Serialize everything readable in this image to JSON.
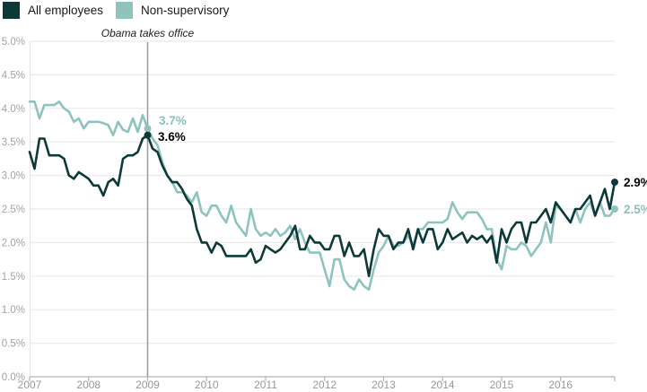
{
  "legend": {
    "items": [
      {
        "label": "All employees",
        "color": "#0d3a38"
      },
      {
        "label": "Non-supervisory",
        "color": "#8fc3be"
      }
    ]
  },
  "chart_data": {
    "type": "line",
    "title": "",
    "xlabel": "",
    "ylabel": "",
    "x_unit": "month",
    "x_range": [
      "2007-01",
      "2016-12"
    ],
    "x_tick_labels": [
      "2007",
      "2008",
      "2009",
      "2010",
      "2011",
      "2012",
      "2013",
      "2014",
      "2015",
      "2016"
    ],
    "y_tick_labels": [
      "5.0%",
      "4.5%",
      "4.0%",
      "3.5%",
      "3.0%",
      "2.5%",
      "2.0%",
      "1.5%",
      "1.0%",
      "0.5%",
      "0.0%"
    ],
    "ylim": [
      0,
      5
    ],
    "grid": "horizontal",
    "legend_position": "top-left",
    "annotation": {
      "label": "Obama takes office",
      "x": "2009-01"
    },
    "series": [
      {
        "name": "Non-supervisory",
        "color": "#8fc3be",
        "values": [
          4.1,
          4.1,
          3.85,
          4.05,
          4.05,
          4.05,
          4.1,
          4.0,
          3.95,
          3.8,
          3.85,
          3.7,
          3.8,
          3.8,
          3.8,
          3.78,
          3.75,
          3.6,
          3.8,
          3.68,
          3.65,
          3.85,
          3.65,
          3.9,
          3.7,
          3.55,
          3.45,
          3.2,
          3.0,
          2.9,
          2.75,
          2.75,
          2.7,
          2.6,
          2.75,
          2.45,
          2.4,
          2.55,
          2.55,
          2.4,
          2.3,
          2.55,
          2.3,
          2.2,
          2.1,
          2.5,
          2.2,
          2.1,
          2.15,
          2.1,
          2.2,
          2.1,
          2.15,
          2.25,
          2.05,
          2.2,
          2.0,
          1.85,
          1.85,
          1.85,
          1.6,
          1.35,
          1.75,
          1.75,
          1.45,
          1.35,
          1.3,
          1.45,
          1.35,
          1.3,
          1.6,
          1.85,
          1.95,
          2.1,
          1.95,
          1.95,
          2.0,
          2.1,
          1.95,
          2.2,
          2.2,
          2.3,
          2.3,
          2.3,
          2.3,
          2.35,
          2.6,
          2.45,
          2.35,
          2.45,
          2.45,
          2.45,
          2.35,
          2.2,
          2.2,
          1.75,
          1.6,
          1.95,
          1.9,
          1.9,
          2.0,
          1.95,
          1.8,
          1.9,
          2.0,
          2.3,
          2.0,
          2.55,
          2.5,
          2.4,
          2.3,
          2.5,
          2.3,
          2.5,
          2.6,
          2.4,
          2.6,
          2.4,
          2.4,
          2.5
        ]
      },
      {
        "name": "All employees",
        "color": "#0d3a38",
        "values": [
          3.35,
          3.1,
          3.55,
          3.55,
          3.3,
          3.3,
          3.3,
          3.25,
          3.0,
          2.95,
          3.05,
          3.0,
          2.95,
          2.85,
          2.85,
          2.7,
          2.9,
          2.95,
          2.85,
          3.25,
          3.3,
          3.3,
          3.35,
          3.55,
          3.6,
          3.4,
          3.35,
          3.15,
          3.0,
          2.9,
          2.9,
          2.8,
          2.65,
          2.55,
          2.2,
          2.0,
          2.0,
          1.85,
          2.0,
          1.95,
          1.8,
          1.8,
          1.8,
          1.8,
          1.8,
          1.9,
          1.7,
          1.75,
          1.95,
          1.9,
          1.85,
          1.9,
          2.0,
          2.1,
          2.25,
          1.9,
          1.9,
          2.1,
          2.0,
          2.0,
          1.9,
          1.9,
          2.1,
          2.1,
          1.8,
          2.0,
          1.8,
          1.8,
          1.9,
          1.5,
          1.9,
          2.2,
          2.1,
          2.1,
          1.9,
          2.0,
          2.0,
          2.2,
          1.9,
          2.2,
          2.0,
          2.2,
          2.2,
          1.9,
          2.0,
          2.2,
          2.05,
          2.1,
          2.15,
          2.0,
          2.1,
          2.05,
          2.1,
          2.0,
          2.1,
          1.7,
          2.2,
          2.0,
          2.2,
          2.3,
          2.3,
          2.0,
          2.3,
          2.3,
          2.4,
          2.5,
          2.3,
          2.6,
          2.5,
          2.4,
          2.3,
          2.5,
          2.5,
          2.6,
          2.7,
          2.4,
          2.6,
          2.8,
          2.5,
          2.9
        ]
      }
    ],
    "callouts": [
      {
        "series": "Non-supervisory",
        "x": "2009-01",
        "month_index": 24,
        "value": 3.7,
        "label": "3.7%",
        "color": "#8bbfba"
      },
      {
        "series": "All employees",
        "x": "2009-01",
        "month_index": 24,
        "value": 3.6,
        "label": "3.6%",
        "color": "#000000"
      },
      {
        "series": "All employees",
        "x": "2016-12",
        "month_index": 119,
        "value": 2.9,
        "label": "2.9%",
        "color": "#000000"
      },
      {
        "series": "Non-supervisory",
        "x": "2016-12",
        "month_index": 119,
        "value": 2.5,
        "label": "2.5%",
        "color": "#8bbfba"
      }
    ]
  }
}
